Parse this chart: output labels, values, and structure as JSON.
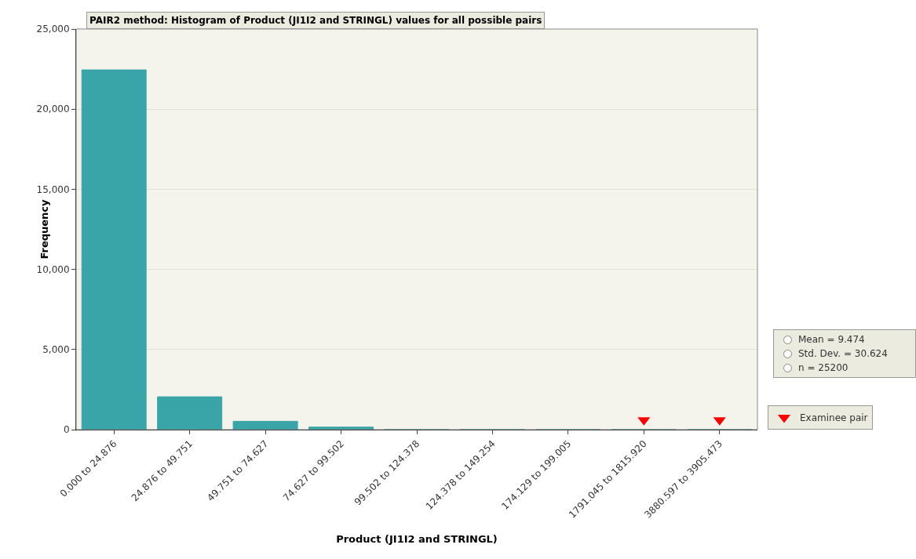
{
  "chart_data": {
    "type": "bar",
    "title": "PAIR2 method: Histogram of Product (JI1I2 and STRINGL) values for all possible pairs",
    "xlabel": "Product (JI1I2 and STRINGL)",
    "ylabel": "Frequency",
    "categories": [
      "0.000 to 24.876",
      "24.876 to 49.751",
      "49.751 to 74.627",
      "74.627 to 99.502",
      "99.502 to 124.378",
      "124.378 to 149.254",
      "174.129 to 199.005",
      "1791.045 to 1815.920",
      "3880.597 to 3905.473"
    ],
    "series": [
      {
        "name": null,
        "color": "#3aa5a8",
        "values": [
          22450,
          2050,
          520,
          160,
          0,
          0,
          0,
          0,
          0
        ]
      },
      {
        "name": "Examinee pair",
        "type": "scatter",
        "marker": "triangle",
        "color": "#ff0000",
        "x": [
          "1791.045 to 1815.920",
          "3880.597 to 3905.473"
        ],
        "values": [
          600,
          600
        ]
      }
    ],
    "ylim": [
      0,
      25000
    ],
    "yticks": [
      {
        "value": 0,
        "label": "0"
      },
      {
        "value": 5000,
        "label": "5,000"
      },
      {
        "value": 10000,
        "label": "10,000"
      },
      {
        "value": 15000,
        "label": "15,000"
      },
      {
        "value": 20000,
        "label": "20,000"
      },
      {
        "value": 25000,
        "label": "25,000"
      }
    ],
    "grid": "y",
    "legend": "bottom right",
    "annotations": [
      "Mean = 9.474",
      "Std. Dev. = 30.624",
      "n = 25200"
    ]
  }
}
